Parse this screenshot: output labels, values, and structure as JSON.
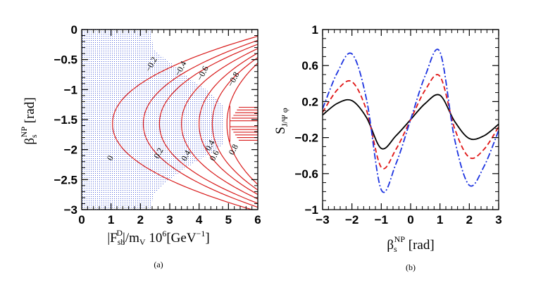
{
  "chart_data": [
    {
      "type": "contour",
      "panel_label": "(a)",
      "xlabel": "|F",
      "xlabel_sub": "sb",
      "xlabel_sup": "D",
      "xlabel_rest": "|/m",
      "xlabel_sub2": "V",
      "xlabel_tail": " 10",
      "xlabel_sup2": "6",
      "xlabel_units": "[GeV",
      "xlabel_sup3": "−1",
      "xlabel_close": "]",
      "ylabel": "β",
      "ylabel_sub": "s",
      "ylabel_sup": "NP",
      "ylabel_units": " [rad]",
      "xlim": [
        0,
        6
      ],
      "ylim": [
        -3,
        0
      ],
      "xticks": [
        "0",
        "1",
        "2",
        "3",
        "4",
        "5",
        "6"
      ],
      "yticks": [
        "0",
        "−0.5",
        "−1",
        "−1.5",
        "−2",
        "−2.5",
        "−3"
      ],
      "xtick_values": [
        0,
        1,
        2,
        3,
        4,
        5,
        6
      ],
      "ytick_values": [
        0,
        -0.5,
        -1,
        -1.5,
        -2,
        -2.5,
        -3
      ],
      "contour_color": "#d81a1a",
      "shade_color": "#4a5fd6",
      "contour_labels": [
        {
          "text": "0",
          "x": 1.05,
          "y": -2.16
        },
        {
          "text": "−0.2",
          "x": 2.45,
          "y": -0.6
        },
        {
          "text": "−0.4",
          "x": 3.45,
          "y": -0.67
        },
        {
          "text": "−0.6",
          "x": 4.2,
          "y": -0.75
        },
        {
          "text": "−0.8",
          "x": 5.25,
          "y": -0.85
        },
        {
          "text": "0.2",
          "x": 2.7,
          "y": -2.08
        },
        {
          "text": "0.4",
          "x": 3.63,
          "y": -2.12
        },
        {
          "text": "0.4",
          "x": 4.45,
          "y": -1.95
        },
        {
          "text": "0.6",
          "x": 4.6,
          "y": -2.12
        },
        {
          "text": "0.8",
          "x": 5.25,
          "y": -2.02
        }
      ]
    },
    {
      "type": "line",
      "panel_label": "(b)",
      "xlabel": "β",
      "xlabel_sub": "s",
      "xlabel_sup": "NP",
      "xlabel_units": " [rad]",
      "ylabel": "S",
      "ylabel_sub": "J/Ψ φ",
      "xlim": [
        -3,
        3
      ],
      "ylim": [
        -1,
        1
      ],
      "xticks": [
        "−3",
        "−2",
        "−1",
        "0",
        "1",
        "2",
        "3"
      ],
      "yticks": [
        "1",
        "0.6",
        "0.2",
        "−0.2",
        "−0.6",
        "−1"
      ],
      "xtick_values": [
        -3,
        -2,
        -1,
        0,
        1,
        2,
        3
      ],
      "ytick_values": [
        1,
        0.6,
        0.2,
        -0.2,
        -0.6,
        -1
      ],
      "series": [
        {
          "name": "solid",
          "color": "#000000",
          "style": "solid",
          "x": [
            -3,
            -2.5,
            -2,
            -1.5,
            -1,
            -0.5,
            0,
            0.5,
            1,
            1.5,
            2,
            2.5,
            3
          ],
          "values": [
            0.05,
            0.18,
            0.21,
            0.02,
            -0.32,
            -0.18,
            0.0,
            0.18,
            0.27,
            -0.02,
            -0.21,
            -0.18,
            -0.05
          ]
        },
        {
          "name": "dashed",
          "color": "#e01515",
          "style": "dashed",
          "x": [
            -3,
            -2.5,
            -2,
            -1.5,
            -1,
            -0.5,
            0,
            0.5,
            1,
            1.5,
            2,
            2.5,
            3
          ],
          "values": [
            0.08,
            0.33,
            0.42,
            0.1,
            -0.53,
            -0.33,
            0.0,
            0.33,
            0.48,
            -0.1,
            -0.42,
            -0.33,
            -0.08
          ]
        },
        {
          "name": "dashdot",
          "color": "#1c33e0",
          "style": "dashdot",
          "x": [
            -3,
            -2.5,
            -2,
            -1.5,
            -1,
            -0.5,
            0,
            0.5,
            1,
            1.5,
            2,
            2.5,
            3
          ],
          "values": [
            0.12,
            0.52,
            0.73,
            0.22,
            -0.78,
            -0.49,
            0.0,
            0.49,
            0.75,
            -0.22,
            -0.73,
            -0.52,
            -0.12
          ]
        }
      ]
    }
  ]
}
